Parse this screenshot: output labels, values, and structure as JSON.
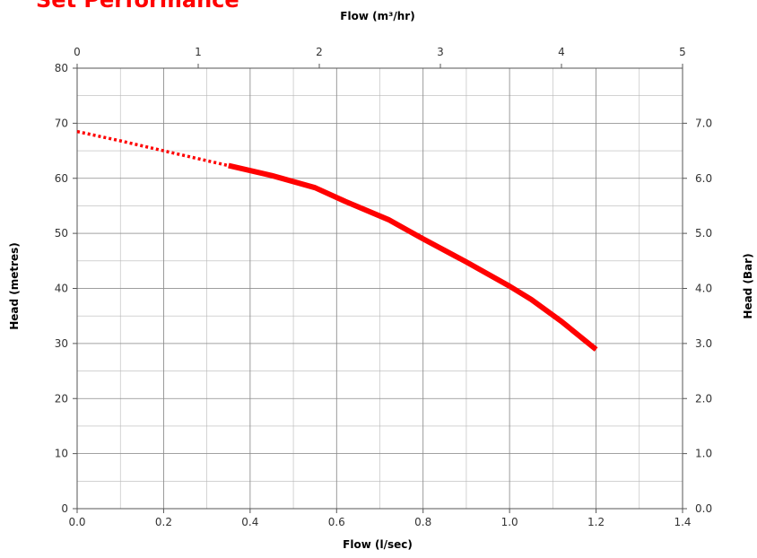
{
  "chart_data": {
    "type": "line",
    "title": "Set Performance",
    "xlabel": "Flow (l/sec)",
    "x2label": "Flow (m³/hr)",
    "ylabel": "Head (metres)",
    "y2label": "Head (Bar)",
    "xlim": [
      0,
      1.4
    ],
    "ylim": [
      0,
      80
    ],
    "x2lim": [
      0,
      5
    ],
    "y2lim": [
      0,
      8
    ],
    "grid": true,
    "x_ticks": [
      "0.0",
      "0.2",
      "0.4",
      "0.6",
      "0.8",
      "1.0",
      "1.2",
      "1.4"
    ],
    "y_ticks": [
      "0",
      "10",
      "20",
      "30",
      "40",
      "50",
      "60",
      "70",
      "80"
    ],
    "x2_ticks": [
      "0",
      "1",
      "2",
      "3",
      "4",
      "5"
    ],
    "y2_ticks": [
      "0.0",
      "1.0",
      "2.0",
      "3.0",
      "4.0",
      "5.0",
      "6.0",
      "7.0"
    ],
    "series": [
      {
        "color": "#ff0000",
        "style": "dotted",
        "x": [
          0.0,
          0.1,
          0.2,
          0.3,
          0.35
        ],
        "y": [
          68.5,
          66.8,
          65.0,
          63.2,
          62.3
        ]
      },
      {
        "color": "#ff0000",
        "style": "solid",
        "x": [
          0.35,
          0.45,
          0.55,
          0.62,
          0.72,
          0.8,
          0.9,
          1.0,
          1.05,
          1.12,
          1.2
        ],
        "y": [
          62.3,
          60.5,
          58.3,
          55.8,
          52.5,
          49.0,
          44.8,
          40.4,
          38.0,
          34.0,
          28.9
        ]
      }
    ]
  }
}
